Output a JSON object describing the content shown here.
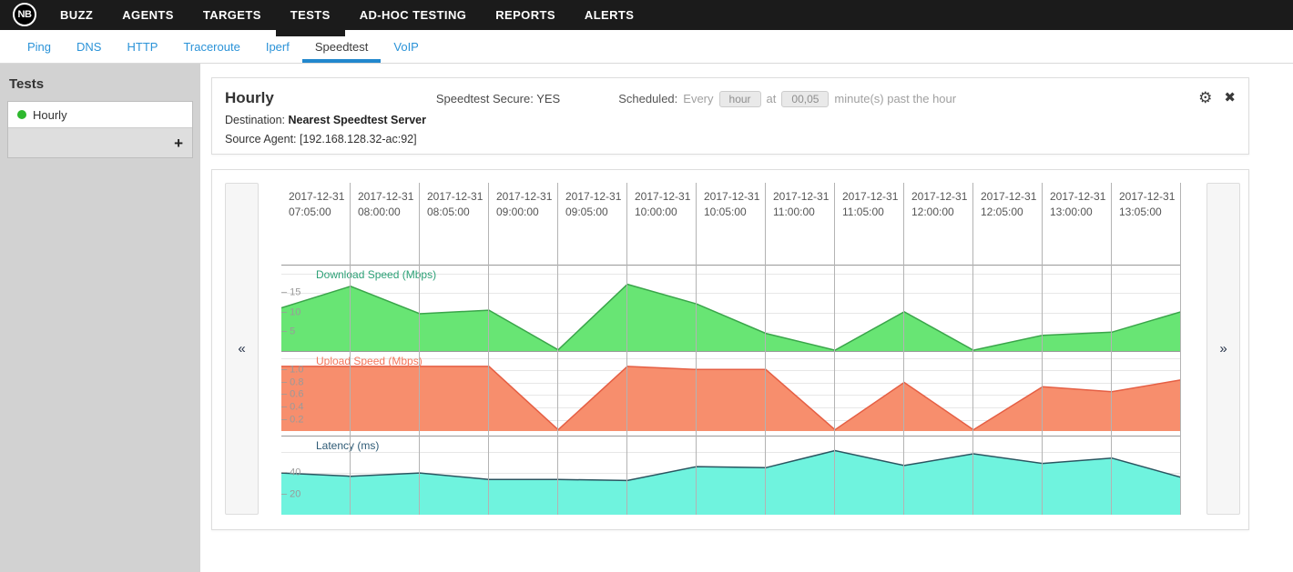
{
  "navbar": {
    "logo": "NB",
    "items": [
      {
        "label": "BUZZ",
        "active": false
      },
      {
        "label": "AGENTS",
        "active": false
      },
      {
        "label": "TARGETS",
        "active": false
      },
      {
        "label": "TESTS",
        "active": true
      },
      {
        "label": "AD-HOC TESTING",
        "active": false
      },
      {
        "label": "REPORTS",
        "active": false
      },
      {
        "label": "ALERTS",
        "active": false
      }
    ]
  },
  "subnav": {
    "items": [
      {
        "label": "Ping",
        "active": false
      },
      {
        "label": "DNS",
        "active": false
      },
      {
        "label": "HTTP",
        "active": false
      },
      {
        "label": "Traceroute",
        "active": false
      },
      {
        "label": "Iperf",
        "active": false
      },
      {
        "label": "Speedtest",
        "active": true
      },
      {
        "label": "VoIP",
        "active": false
      }
    ]
  },
  "sidebar": {
    "title": "Tests",
    "items": [
      {
        "label": "Hourly",
        "status_color": "#2eb82e"
      }
    ],
    "add_button": "+"
  },
  "panel": {
    "title": "Hourly",
    "secure_label": "Speedtest Secure:",
    "secure_value": "YES",
    "scheduled_label": "Scheduled:",
    "scheduled_every": "Every",
    "interval_value": "hour",
    "at_label": "at",
    "minutes_value": "00,05",
    "scheduled_suffix": "minute(s) past the hour",
    "destination_label": "Destination:",
    "destination_value": "Nearest Speedtest Server",
    "source_label": "Source Agent:",
    "source_value": "[192.168.128.32-ac:92]",
    "settings_icon": "⚙",
    "close_icon": "✖"
  },
  "chart_controls": {
    "scroll_left": "«",
    "scroll_right": "»"
  },
  "chart_data": {
    "type": "area",
    "timestamps": [
      "2017-12-31 07:05:00",
      "2017-12-31 08:00:00",
      "2017-12-31 08:05:00",
      "2017-12-31 09:00:00",
      "2017-12-31 09:05:00",
      "2017-12-31 10:00:00",
      "2017-12-31 10:05:00",
      "2017-12-31 11:00:00",
      "2017-12-31 11:05:00",
      "2017-12-31 12:00:00",
      "2017-12-31 12:05:00",
      "2017-12-31 13:00:00",
      "2017-12-31 13:05:00"
    ],
    "point_alignment": "column-boundaries",
    "grid": true,
    "charts": [
      {
        "id": "download-speed",
        "title": "Download Speed (Mbps)",
        "ylim": [
          0,
          22
        ],
        "ticks": [
          {
            "value": 5,
            "label": "5"
          },
          {
            "value": 10,
            "label": "10"
          },
          {
            "value": 15,
            "label": "15"
          }
        ],
        "values": [
          11,
          16.5,
          9.5,
          10.4,
          0.3,
          17,
          12,
          4.5,
          0.2,
          10,
          0.2,
          4,
          4.8,
          10
        ],
        "color_fill": "#68e574",
        "color_stroke": "#3aa54a",
        "color_label": "#2da177"
      },
      {
        "id": "upload-speed",
        "title": "Upload Speed (Mbps)",
        "ylim": [
          0,
          1.3
        ],
        "ticks": [
          {
            "value": 0.2,
            "label": "0.2"
          },
          {
            "value": 0.4,
            "label": "0.4"
          },
          {
            "value": 0.6,
            "label": "0.6"
          },
          {
            "value": 0.8,
            "label": "0.8"
          },
          {
            "value": 1.0,
            "label": "1.0"
          }
        ],
        "values": [
          1.05,
          1.05,
          1.05,
          1.05,
          0.02,
          1.05,
          1.0,
          1.0,
          0.02,
          0.79,
          0.02,
          0.72,
          0.64,
          0.83
        ],
        "color_fill": "#f78e6d",
        "color_stroke": "#e55f44",
        "color_label": "#f4765c"
      },
      {
        "id": "latency",
        "title": "Latency (ms)",
        "ylim": [
          0,
          74
        ],
        "ticks": [
          {
            "value": 20,
            "label": "20"
          },
          {
            "value": 40,
            "label": "40"
          }
        ],
        "values": [
          39,
          36,
          39,
          33,
          33,
          32,
          45,
          44,
          60,
          46,
          57,
          48,
          53,
          35
        ],
        "color_fill": "#6ff3de",
        "color_stroke": "#2a5560",
        "color_label": "#2e5a75"
      }
    ]
  },
  "colors": {
    "navbar_bg": "#1b1b1b",
    "link_blue": "#2b93d8",
    "active_underline": "#2187cd",
    "sidebar_bg": "#d2d2d2",
    "status_green": "#2eb82e"
  }
}
